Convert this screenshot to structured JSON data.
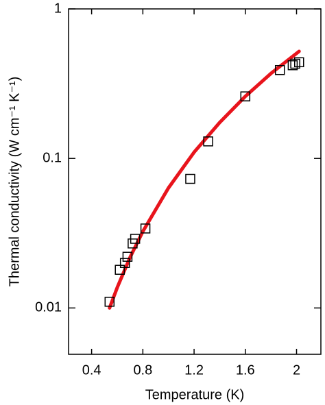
{
  "chart_data": {
    "type": "scatter",
    "x_label": "Temperature (K)",
    "y_label": "Thermal conductivity (W cm⁻¹ K⁻¹)",
    "xlim": [
      0.22,
      2.19
    ],
    "xticks": [
      0.4,
      0.8,
      1.2,
      1.6,
      2
    ],
    "ylim": [
      0.0049,
      1
    ],
    "yticks": [
      0.01,
      0.1,
      1
    ],
    "yscale": "log",
    "grid": false,
    "series": [
      {
        "type": "line",
        "color": "#e8141c",
        "x": [
          0.54,
          0.6,
          0.7,
          0.8,
          1.0,
          1.2,
          1.4,
          1.6,
          1.8,
          2.02
        ],
        "values": [
          0.01,
          0.0137,
          0.0218,
          0.0325,
          0.0635,
          0.11,
          0.174,
          0.26,
          0.37,
          0.52
        ]
      },
      {
        "type": "scatter",
        "marker": "square",
        "color": "#000000",
        "x": [
          0.54,
          0.62,
          0.66,
          0.68,
          0.72,
          0.74,
          0.82,
          1.17,
          1.31,
          1.6,
          1.87,
          1.97,
          1.99,
          2.02
        ],
        "values": [
          0.011,
          0.018,
          0.02,
          0.022,
          0.027,
          0.029,
          0.034,
          0.073,
          0.13,
          0.26,
          0.39,
          0.42,
          0.43,
          0.44
        ]
      }
    ]
  }
}
